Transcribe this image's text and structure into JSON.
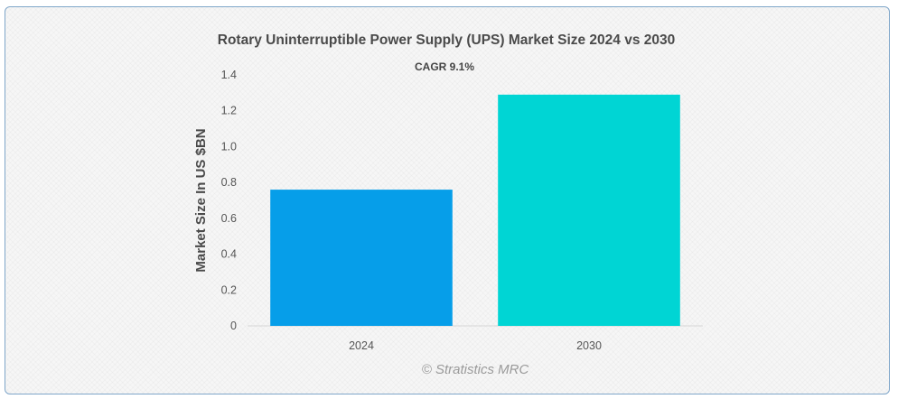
{
  "chart_data": {
    "type": "bar",
    "title": "Rotary Uninterruptible Power Supply (UPS) Market Size 2024 vs 2030",
    "subtitle": "CAGR 9.1%",
    "xlabel": "",
    "ylabel": "Market Size In US $BN",
    "categories": [
      "2024",
      "2030"
    ],
    "values": [
      0.76,
      1.29
    ],
    "colors": [
      "#069ee9",
      "#00d5d4"
    ],
    "ylim": [
      0,
      1.4
    ],
    "yticks": [
      "0",
      "0.2",
      "0.4",
      "0.6",
      "0.8",
      "1.0",
      "1.2",
      "1.4"
    ],
    "grid": false
  },
  "credit": "© Stratistics MRC"
}
